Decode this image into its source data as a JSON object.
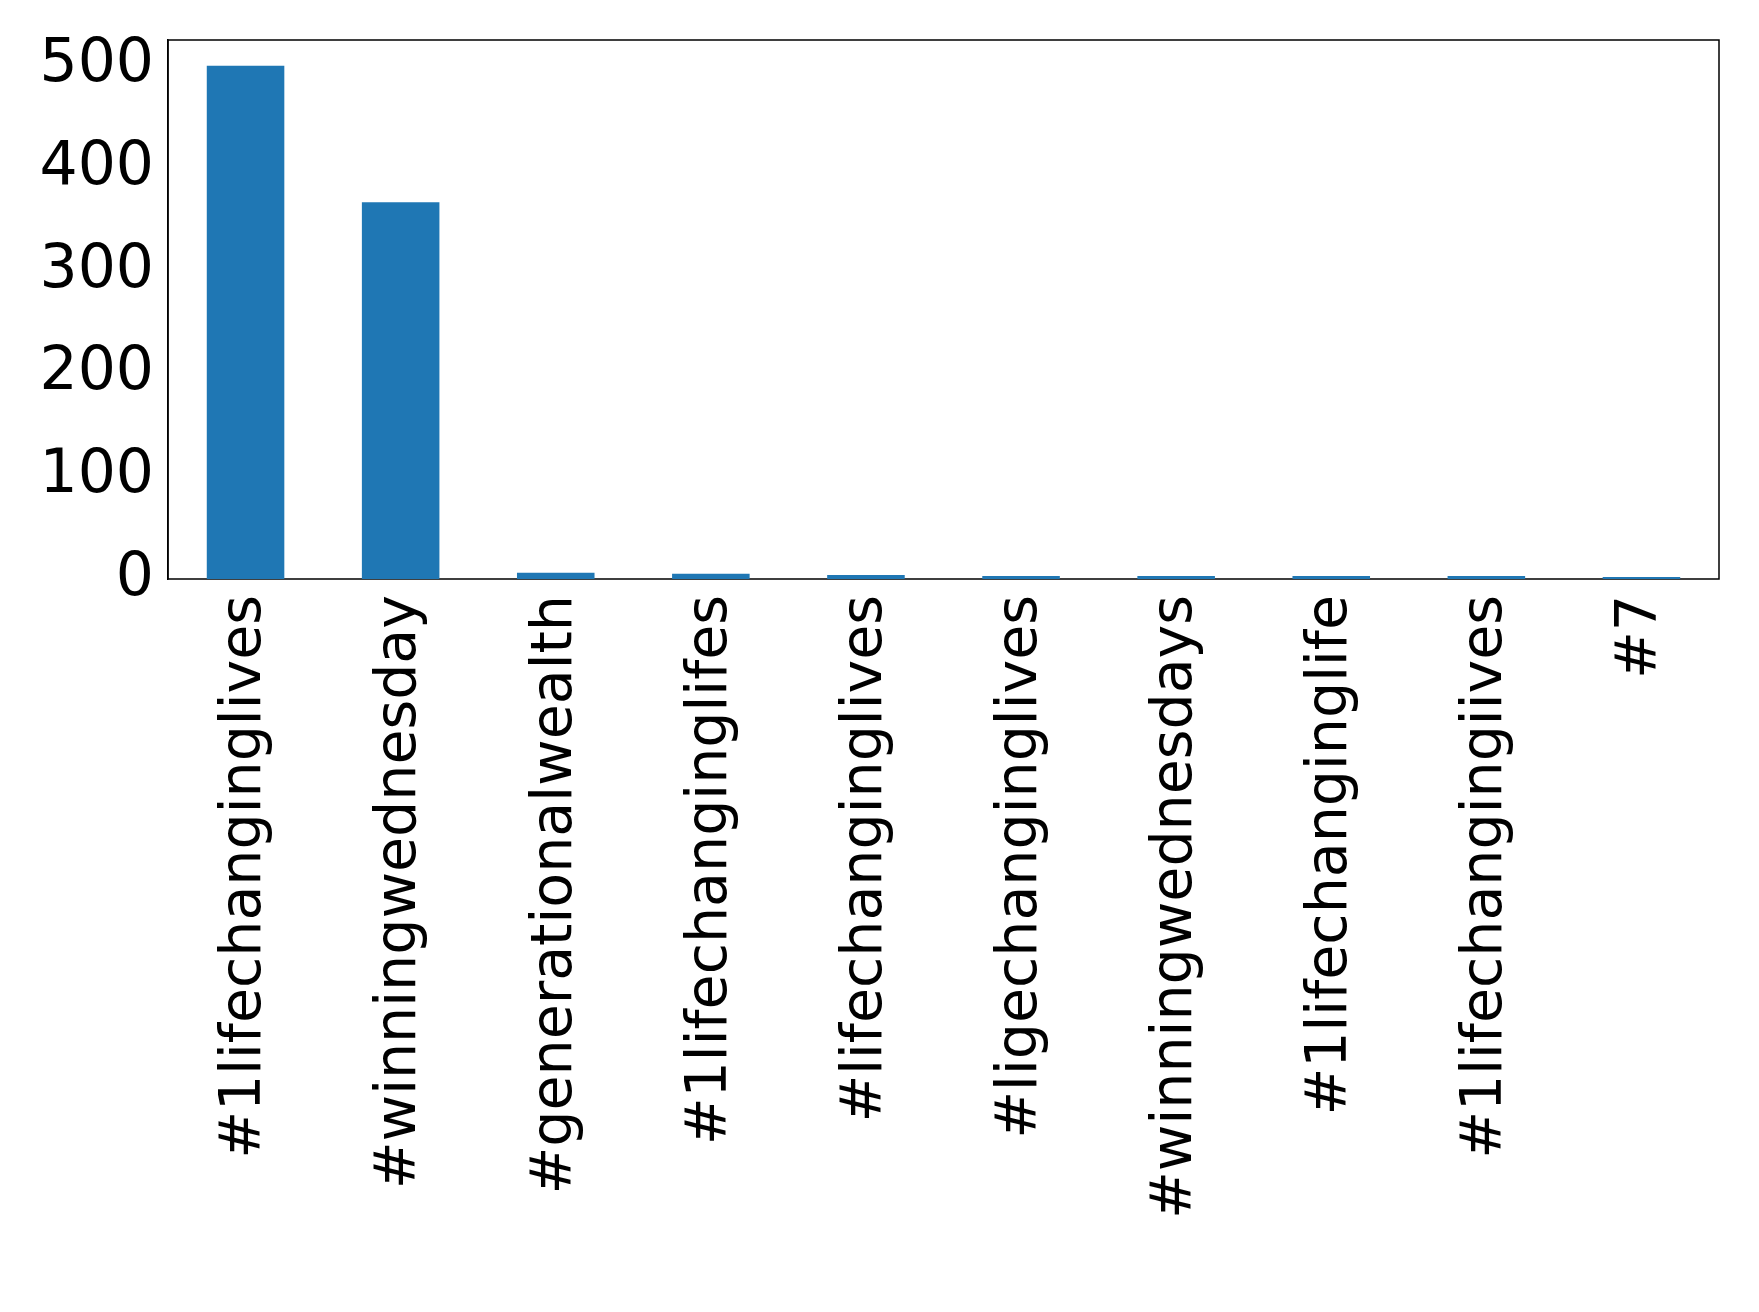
{
  "chart_data": {
    "type": "bar",
    "categories": [
      "#1lifechanginglives",
      "#winningwednesday",
      "#generationalwealth",
      "#1lifechanginglifes",
      "#lifechanginglives",
      "#ligechanginglives",
      "#winningwednesdays",
      "#1lifechanginglife",
      "#1lifechangingiives",
      "#7"
    ],
    "values": [
      500,
      367,
      6,
      5,
      4,
      3,
      3,
      3,
      3,
      2
    ],
    "color": "#1f77b4",
    "ylim": [
      0,
      525
    ],
    "yticks": [
      0,
      100,
      200,
      300,
      400,
      500
    ],
    "grid": false,
    "legend": false
  }
}
